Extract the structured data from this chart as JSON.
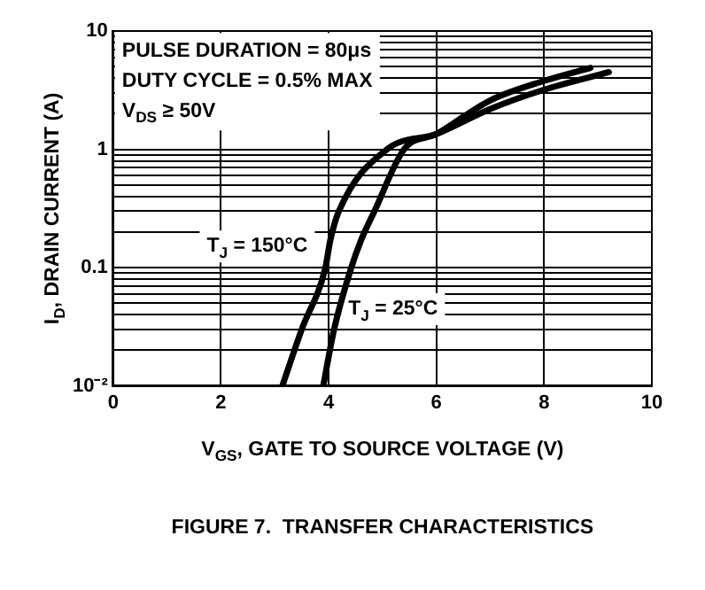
{
  "chart_data": {
    "type": "line",
    "title": "FIGURE 7.  TRANSFER CHARACTERISTICS",
    "xlabel": "V$_{GS}$, GATE TO SOURCE VOLTAGE (V)",
    "ylabel": "I$_{D}$, DRAIN CURRENT (A)",
    "annotations": [
      "PULSE DURATION = 80μs",
      "DUTY CYCLE = 0.5% MAX",
      "V$_{DS}$ ≥ 50V"
    ],
    "series": [
      {
        "name": "T$_{J}$ = 150°C",
        "color": "#000000",
        "x": [
          3.14,
          3.5,
          3.94,
          4.03,
          4.19,
          5.08,
          6,
          7,
          8,
          9.2
        ],
        "values": [
          0.01,
          0.03,
          0.1,
          0.17,
          0.3,
          1,
          1.35,
          2.2,
          3.2,
          4.5
        ]
      },
      {
        "name": "T$_{J}$ = 25°C",
        "color": "#000000",
        "x": [
          3.9,
          4.1,
          4.42,
          4.6,
          4.85,
          5.4,
          6,
          7,
          8,
          8.86
        ],
        "values": [
          0.01,
          0.03,
          0.1,
          0.17,
          0.3,
          1,
          1.35,
          2.6,
          3.8,
          4.9
        ]
      }
    ],
    "xlim": [
      0,
      10
    ],
    "xticks": [
      0,
      2,
      4,
      6,
      8,
      10
    ],
    "ylim": [
      0.01,
      10
    ],
    "yticks": [
      {
        "value": 0.01,
        "label": "10⁻²"
      },
      {
        "value": 0.02,
        "label": null
      },
      {
        "value": 0.03,
        "label": null
      },
      {
        "value": 0.04,
        "label": null
      },
      {
        "value": 0.05,
        "label": null
      },
      {
        "value": 0.06,
        "label": null
      },
      {
        "value": 0.07,
        "label": null
      },
      {
        "value": 0.08,
        "label": null
      },
      {
        "value": 0.09,
        "label": null
      },
      0.1,
      {
        "value": 0.2,
        "label": null
      },
      {
        "value": 0.3,
        "label": null
      },
      {
        "value": 0.4,
        "label": null
      },
      {
        "value": 0.5,
        "label": null
      },
      {
        "value": 0.6,
        "label": null
      },
      {
        "value": 0.7,
        "label": null
      },
      {
        "value": 0.8,
        "label": null
      },
      {
        "value": 0.9,
        "label": null
      },
      1,
      {
        "value": 2,
        "label": null
      },
      {
        "value": 3,
        "label": null
      },
      {
        "value": 4,
        "label": null
      },
      {
        "value": 5,
        "label": null
      },
      {
        "value": 6,
        "label": null
      },
      {
        "value": 7,
        "label": null
      },
      {
        "value": 8,
        "label": null
      },
      {
        "value": 9,
        "label": null
      },
      10
    ],
    "log": true,
    "grid": true,
    "legend": false,
    "marker": "none",
    "line_style": "solid"
  }
}
